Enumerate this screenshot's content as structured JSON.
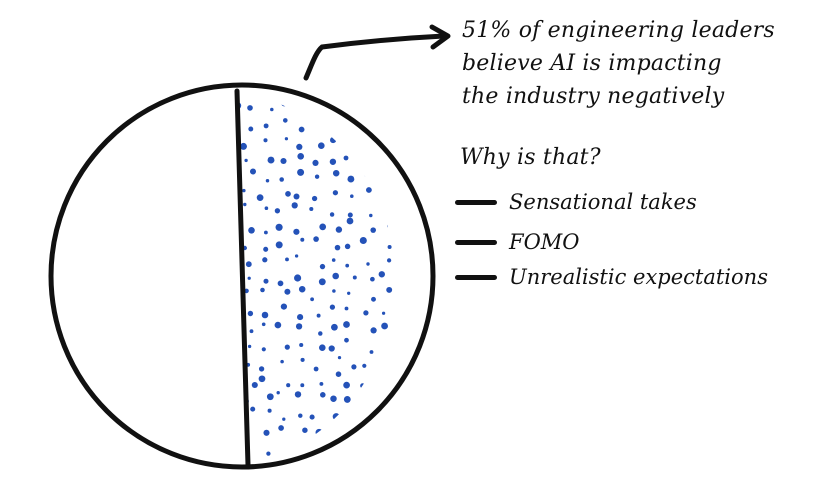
{
  "chart_data": {
    "type": "pie",
    "title": "",
    "slices": [
      {
        "label": "believe AI is impacting the industry negatively",
        "value": 51,
        "pattern": "dots"
      },
      {
        "label": "",
        "value": 49,
        "pattern": "none"
      }
    ],
    "annotation_lines": [
      "51% of engineering leaders",
      "believe AI is impacting",
      "the industry negatively"
    ],
    "question": "Why is that?",
    "reasons": [
      "Sensational takes",
      "FOMO",
      "Unrealistic expectations"
    ],
    "colors": {
      "dots": "#2452b8",
      "outline": "#111111",
      "background": "#ffffff"
    }
  }
}
